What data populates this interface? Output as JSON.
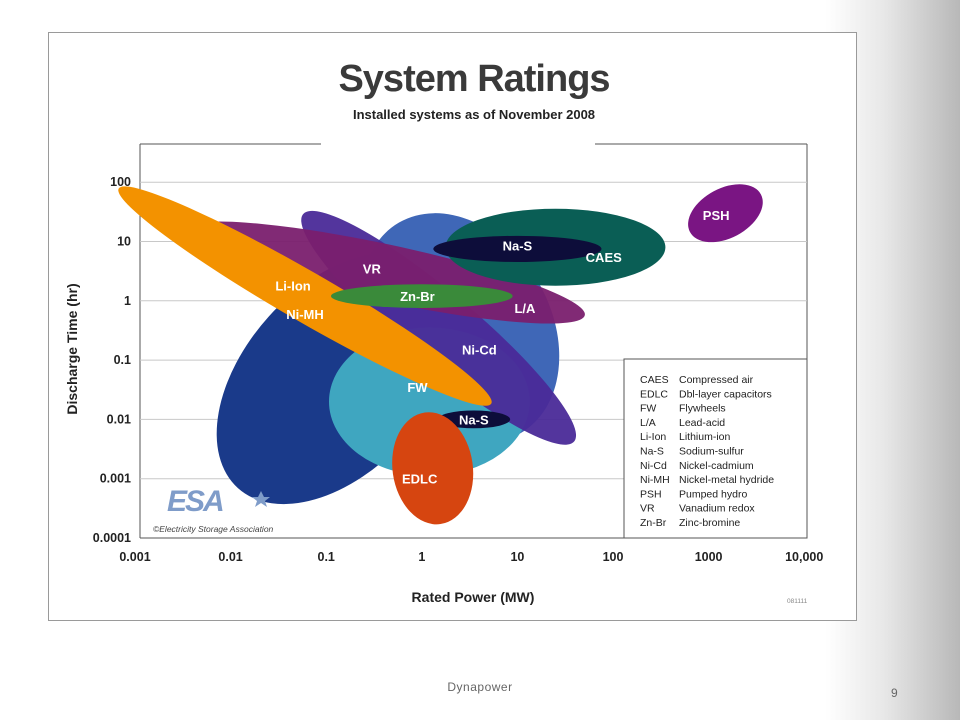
{
  "chart_data": {
    "type": "scatter",
    "title": "System Ratings",
    "subtitle": "Installed systems as of November 2008",
    "xlabel": "Rated Power (MW)",
    "ylabel": "Discharge Time (hr)",
    "xscale": "log",
    "yscale": "log",
    "xlim": [
      0.001,
      10000
    ],
    "ylim": [
      0.0001,
      100
    ],
    "x_ticks": [
      "0.001",
      "0.01",
      "0.1",
      "1",
      "10",
      "100",
      "1000",
      "10,000"
    ],
    "y_ticks": [
      "0.0001",
      "0.001",
      "0.01",
      "0.1",
      "1",
      "10",
      "100"
    ],
    "grid": "horizontal",
    "regions": [
      {
        "label": "Ni-MH",
        "color": "#1a3a8a",
        "x": 0.13,
        "y": 0.05,
        "label_x": 0.06,
        "label_y": 0.6
      },
      {
        "label": "L/A",
        "color": "#3f67b7",
        "x": 2.5,
        "y": 0.35,
        "label_x": 12,
        "label_y": 0.75
      },
      {
        "label": "FW",
        "color": "#3fa6c0",
        "x": 1.2,
        "y": 0.02,
        "label_x": 0.9,
        "label_y": 0.035
      },
      {
        "label": "Ni-Cd",
        "color": "#4a2a98",
        "x": 1.5,
        "y": 0.35,
        "label_x": 4,
        "label_y": 0.15
      },
      {
        "label": "VR",
        "color": "#7a1f6e",
        "x": 0.4,
        "y": 3,
        "label_x": 0.3,
        "label_y": 3.5
      },
      {
        "label": "Li-Ion",
        "color": "#f39200",
        "x": 0.06,
        "y": 1.2,
        "label_x": 0.045,
        "label_y": 1.8
      },
      {
        "label": "Zn-Br",
        "color": "#3a8a3a",
        "x": 1,
        "y": 1.2,
        "label_x": 0.9,
        "label_y": 1.2
      },
      {
        "label": "CAES",
        "color": "#0a5e55",
        "x": 25,
        "y": 8,
        "label_x": 80,
        "label_y": 5.5
      },
      {
        "label": "Na-S",
        "color": "#0d0d3a",
        "x": 10,
        "y": 7.5,
        "label_x": 10,
        "label_y": 8.5
      },
      {
        "label": "Na-S",
        "color": "#0d0d3a",
        "x": 3.5,
        "y": 0.01,
        "label_x": 3.5,
        "label_y": 0.01
      },
      {
        "label": "EDLC",
        "color": "#d64510",
        "x": 1.3,
        "y": 0.0015,
        "label_x": 0.95,
        "label_y": 0.001
      },
      {
        "label": "PSH",
        "color": "#7a1583",
        "x": 1500,
        "y": 30,
        "label_x": 1200,
        "label_y": 28
      }
    ],
    "legend": {
      "position": "bottom-right",
      "entries": [
        {
          "abbr": "CAES",
          "name": "Compressed air"
        },
        {
          "abbr": "EDLC",
          "name": "Dbl-layer capacitors"
        },
        {
          "abbr": "FW",
          "name": "Flywheels"
        },
        {
          "abbr": "L/A",
          "name": "Lead-acid"
        },
        {
          "abbr": "Li-Ion",
          "name": "Lithium-ion"
        },
        {
          "abbr": "Na-S",
          "name": "Sodium-sulfur"
        },
        {
          "abbr": "Ni-Cd",
          "name": "Nickel-cadmium"
        },
        {
          "abbr": "Ni-MH",
          "name": "Nickel-metal hydride"
        },
        {
          "abbr": "PSH",
          "name": "Pumped hydro"
        },
        {
          "abbr": "VR",
          "name": "Vanadium redox"
        },
        {
          "abbr": "Zn-Br",
          "name": "Zinc-bromine"
        }
      ]
    },
    "logo": {
      "text": "ESA",
      "caption": "©Electricity Storage Association"
    },
    "code": "081111"
  },
  "footer": {
    "center": "Dynapower",
    "page": "9"
  }
}
